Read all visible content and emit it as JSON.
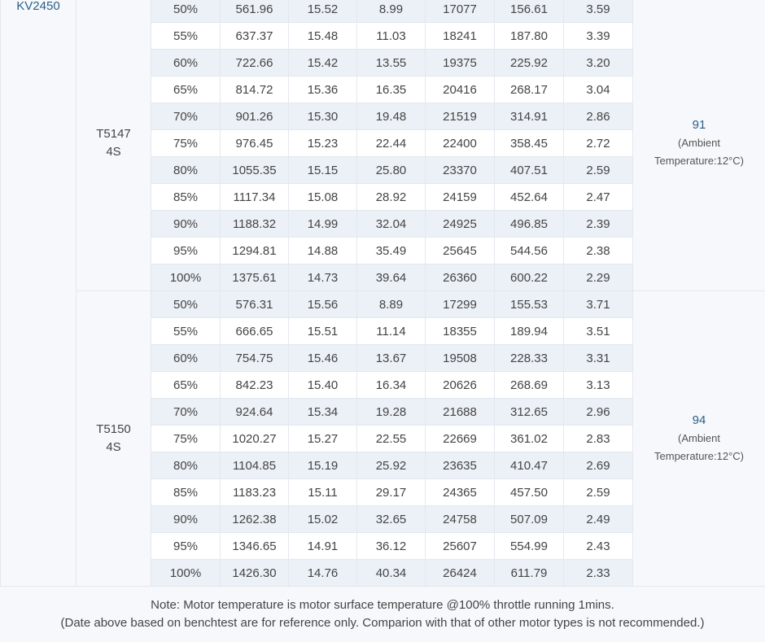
{
  "model": "KV2450",
  "groups": [
    {
      "propeller": [
        "T5147",
        "4S"
      ],
      "temperature": {
        "value": "91",
        "note": [
          "(Ambient",
          "Temperature:12°C)"
        ]
      },
      "rows": [
        [
          "50%",
          "561.96",
          "15.52",
          "8.99",
          "17077",
          "156.61",
          "3.59"
        ],
        [
          "55%",
          "637.37",
          "15.48",
          "11.03",
          "18241",
          "187.80",
          "3.39"
        ],
        [
          "60%",
          "722.66",
          "15.42",
          "13.55",
          "19375",
          "225.92",
          "3.20"
        ],
        [
          "65%",
          "814.72",
          "15.36",
          "16.35",
          "20416",
          "268.17",
          "3.04"
        ],
        [
          "70%",
          "901.26",
          "15.30",
          "19.48",
          "21519",
          "314.91",
          "2.86"
        ],
        [
          "75%",
          "976.45",
          "15.23",
          "22.44",
          "22400",
          "358.45",
          "2.72"
        ],
        [
          "80%",
          "1055.35",
          "15.15",
          "25.80",
          "23370",
          "407.51",
          "2.59"
        ],
        [
          "85%",
          "1117.34",
          "15.08",
          "28.92",
          "24159",
          "452.64",
          "2.47"
        ],
        [
          "90%",
          "1188.32",
          "14.99",
          "32.04",
          "24925",
          "496.85",
          "2.39"
        ],
        [
          "95%",
          "1294.81",
          "14.88",
          "35.49",
          "25645",
          "544.56",
          "2.38"
        ],
        [
          "100%",
          "1375.61",
          "14.73",
          "39.64",
          "26360",
          "600.22",
          "2.29"
        ]
      ]
    },
    {
      "propeller": [
        "T5150",
        "4S"
      ],
      "temperature": {
        "value": "94",
        "note": [
          "(Ambient",
          "Temperature:12°C)"
        ]
      },
      "rows": [
        [
          "50%",
          "576.31",
          "15.56",
          "8.89",
          "17299",
          "155.53",
          "3.71"
        ],
        [
          "55%",
          "666.65",
          "15.51",
          "11.14",
          "18355",
          "189.94",
          "3.51"
        ],
        [
          "60%",
          "754.75",
          "15.46",
          "13.67",
          "19508",
          "228.33",
          "3.31"
        ],
        [
          "65%",
          "842.23",
          "15.40",
          "16.34",
          "20626",
          "268.69",
          "3.13"
        ],
        [
          "70%",
          "924.64",
          "15.34",
          "19.28",
          "21688",
          "312.65",
          "2.96"
        ],
        [
          "75%",
          "1020.27",
          "15.27",
          "22.55",
          "22669",
          "361.02",
          "2.83"
        ],
        [
          "80%",
          "1104.85",
          "15.19",
          "25.92",
          "23635",
          "410.47",
          "2.69"
        ],
        [
          "85%",
          "1183.23",
          "15.11",
          "29.17",
          "24365",
          "457.50",
          "2.59"
        ],
        [
          "90%",
          "1262.38",
          "15.02",
          "32.65",
          "24758",
          "507.09",
          "2.49"
        ],
        [
          "95%",
          "1346.65",
          "14.91",
          "36.12",
          "25607",
          "554.99",
          "2.43"
        ],
        [
          "100%",
          "1426.30",
          "14.76",
          "40.34",
          "26424",
          "611.79",
          "2.33"
        ]
      ]
    }
  ],
  "footnote": {
    "line1": "Note: Motor temperature is motor surface temperature @100% throttle running 1mins.",
    "line2": "(Date above based on benchtest are for reference only. Comparion with that of other motor types is not recommended.)"
  }
}
